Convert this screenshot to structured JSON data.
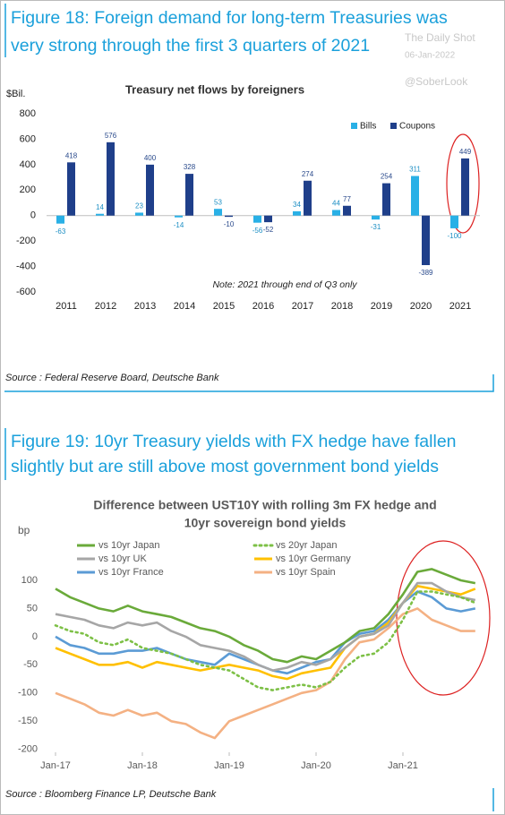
{
  "figures": [
    {
      "heading": [
        "Figure 18: Foreign demand for long-term Treasuries was",
        "very strong through the first 3 quarters of 2021"
      ],
      "source": "Source : Federal Reserve Board, Deutsche Bank"
    },
    {
      "heading": [
        "Figure 19: 10yr Treasury yields with FX hedge have fallen",
        "slightly but are still above most government bond yields"
      ],
      "source": "Source : Bloomberg Finance LP, Deutsche Bank"
    }
  ],
  "watermark": [
    "The Daily Shot",
    "06-Jan-2022",
    "@SoberLook"
  ],
  "chart_data": [
    {
      "type": "bar",
      "title": "Treasury net flows by foreigners",
      "y_label": "$Bil.",
      "note": "Note: 2021 through end of Q3 only",
      "categories": [
        "2011",
        "2012",
        "2013",
        "2014",
        "2015",
        "2016",
        "2017",
        "2018",
        "2019",
        "2020",
        "2021"
      ],
      "series": [
        {
          "name": "Bills",
          "color": "#29b0e6",
          "values": [
            -63,
            14,
            23,
            -14,
            53,
            -56,
            34,
            44,
            -31,
            311,
            -100
          ]
        },
        {
          "name": "Coupons",
          "color": "#1f3f8a",
          "values": [
            418,
            576,
            400,
            328,
            -10,
            -52,
            274,
            77,
            254,
            -389,
            449
          ]
        }
      ],
      "ylim": [
        -600,
        800
      ],
      "yticks": [
        -600,
        -400,
        -200,
        0,
        200,
        400,
        600,
        800
      ],
      "grid": false,
      "legend": "top-right"
    },
    {
      "type": "line",
      "title": [
        "Difference between UST10Y with rolling 3m FX hedge and",
        "10yr sovereign bond yields"
      ],
      "y_label": "bp",
      "x": [
        "2017-01",
        "2017-03",
        "2017-05",
        "2017-07",
        "2017-09",
        "2017-11",
        "2018-01",
        "2018-03",
        "2018-05",
        "2018-07",
        "2018-09",
        "2018-11",
        "2019-01",
        "2019-03",
        "2019-05",
        "2019-07",
        "2019-09",
        "2019-11",
        "2020-01",
        "2020-03",
        "2020-05",
        "2020-07",
        "2020-09",
        "2020-11",
        "2021-01",
        "2021-03",
        "2021-05",
        "2021-07",
        "2021-09",
        "2021-11"
      ],
      "series": [
        {
          "name": "vs 10yr Japan",
          "color": "#6aaa3a",
          "style": "solid",
          "values": [
            85,
            70,
            60,
            50,
            45,
            55,
            45,
            40,
            35,
            25,
            15,
            10,
            0,
            -15,
            -25,
            -40,
            -45,
            -35,
            -40,
            -25,
            -10,
            10,
            15,
            40,
            75,
            115,
            120,
            110,
            100,
            95
          ]
        },
        {
          "name": "vs 20yr Japan",
          "color": "#7dc046",
          "style": "dotted",
          "values": [
            20,
            10,
            5,
            -10,
            -15,
            -5,
            -20,
            -25,
            -30,
            -40,
            -50,
            -55,
            -60,
            -75,
            -90,
            -95,
            -90,
            -85,
            -90,
            -80,
            -55,
            -35,
            -30,
            -10,
            30,
            80,
            80,
            75,
            70,
            60
          ]
        },
        {
          "name": "vs 10yr UK",
          "color": "#a6a6a6",
          "style": "solid",
          "values": [
            40,
            35,
            30,
            20,
            15,
            25,
            20,
            25,
            10,
            0,
            -15,
            -20,
            -25,
            -35,
            -50,
            -60,
            -55,
            -45,
            -50,
            -40,
            -20,
            0,
            5,
            20,
            60,
            95,
            95,
            80,
            70,
            65
          ]
        },
        {
          "name": "vs 10yr Germany",
          "color": "#ffc000",
          "style": "solid",
          "values": [
            -20,
            -30,
            -40,
            -50,
            -50,
            -45,
            -55,
            -45,
            -50,
            -55,
            -60,
            -55,
            -50,
            -55,
            -60,
            -70,
            -75,
            -65,
            -60,
            -55,
            -20,
            0,
            5,
            25,
            60,
            90,
            85,
            80,
            75,
            85
          ]
        },
        {
          "name": "vs 10yr France",
          "color": "#5b9bd5",
          "style": "solid",
          "values": [
            0,
            -15,
            -20,
            -30,
            -30,
            -25,
            -25,
            -20,
            -30,
            -40,
            -45,
            -50,
            -30,
            -40,
            -50,
            -60,
            -65,
            -55,
            -45,
            -40,
            -10,
            5,
            10,
            30,
            60,
            80,
            70,
            50,
            45,
            50
          ]
        },
        {
          "name": "vs 10yr Spain",
          "color": "#f4b183",
          "style": "solid",
          "values": [
            -100,
            -110,
            -120,
            -135,
            -140,
            -130,
            -140,
            -135,
            -150,
            -155,
            -170,
            -180,
            -150,
            -140,
            -130,
            -120,
            -110,
            -100,
            -95,
            -80,
            -40,
            -10,
            -5,
            15,
            40,
            50,
            30,
            20,
            10,
            10
          ]
        }
      ],
      "ylim": [
        -210,
        150
      ],
      "yticks": [
        -200,
        -150,
        -100,
        -50,
        0,
        50,
        100
      ],
      "xticks": [
        {
          "value": "2017-01",
          "label": "Jan-17"
        },
        {
          "value": "2018-01",
          "label": "Jan-18"
        },
        {
          "value": "2019-01",
          "label": "Jan-19"
        },
        {
          "value": "2020-01",
          "label": "Jan-20"
        },
        {
          "value": "2021-01",
          "label": "Jan-21"
        }
      ],
      "grid": false,
      "legend": "top"
    }
  ]
}
